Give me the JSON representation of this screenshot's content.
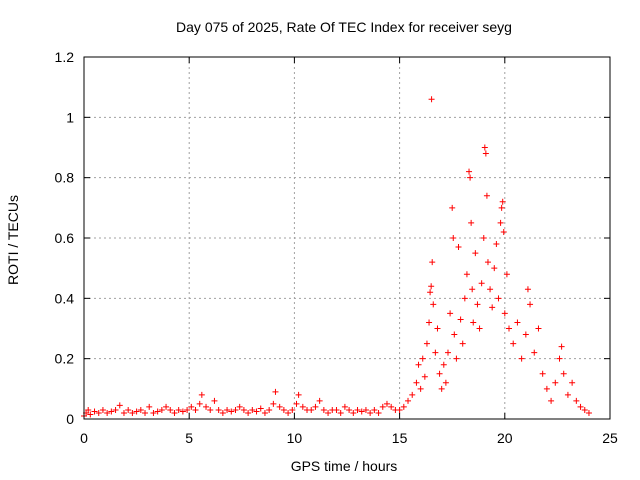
{
  "chart_data": {
    "type": "scatter",
    "title": "Day 075 of 2025, Rate Of TEC Index for receiver seyg",
    "xlabel": "GPS time / hours",
    "ylabel": "ROTI / TECUs",
    "xlim": [
      0,
      25
    ],
    "ylim": [
      0,
      1.2
    ],
    "xticks": [
      0,
      5,
      10,
      15,
      20,
      25
    ],
    "yticks": [
      0,
      0.2,
      0.4,
      0.6,
      0.8,
      1,
      1.2
    ],
    "xtick_labels": [
      "0",
      "5",
      "10",
      "15",
      "20",
      "25"
    ],
    "ytick_labels": [
      "0",
      "0.2",
      "0.4",
      "0.6",
      "0.8",
      "1",
      "1.2"
    ],
    "grid": true,
    "marker": "+",
    "color": "#ff0000",
    "series": [
      {
        "name": "ROTI",
        "points": [
          [
            0.0,
            0.01
          ],
          [
            0.1,
            0.02
          ],
          [
            0.2,
            0.03
          ],
          [
            0.3,
            0.015
          ],
          [
            0.5,
            0.025
          ],
          [
            0.7,
            0.02
          ],
          [
            0.9,
            0.03
          ],
          [
            1.1,
            0.02
          ],
          [
            1.3,
            0.025
          ],
          [
            1.5,
            0.03
          ],
          [
            1.7,
            0.045
          ],
          [
            1.9,
            0.02
          ],
          [
            2.1,
            0.03
          ],
          [
            2.3,
            0.02
          ],
          [
            2.5,
            0.025
          ],
          [
            2.7,
            0.03
          ],
          [
            2.9,
            0.02
          ],
          [
            3.1,
            0.04
          ],
          [
            3.3,
            0.02
          ],
          [
            3.5,
            0.025
          ],
          [
            3.7,
            0.03
          ],
          [
            3.9,
            0.04
          ],
          [
            4.1,
            0.03
          ],
          [
            4.3,
            0.02
          ],
          [
            4.5,
            0.03
          ],
          [
            4.7,
            0.025
          ],
          [
            4.9,
            0.03
          ],
          [
            5.1,
            0.04
          ],
          [
            5.3,
            0.03
          ],
          [
            5.5,
            0.05
          ],
          [
            5.6,
            0.08
          ],
          [
            5.8,
            0.04
          ],
          [
            6.0,
            0.03
          ],
          [
            6.2,
            0.06
          ],
          [
            6.4,
            0.03
          ],
          [
            6.6,
            0.02
          ],
          [
            6.8,
            0.03
          ],
          [
            7.0,
            0.025
          ],
          [
            7.2,
            0.03
          ],
          [
            7.4,
            0.04
          ],
          [
            7.6,
            0.03
          ],
          [
            7.8,
            0.02
          ],
          [
            8.0,
            0.03
          ],
          [
            8.2,
            0.025
          ],
          [
            8.4,
            0.035
          ],
          [
            8.6,
            0.02
          ],
          [
            8.8,
            0.03
          ],
          [
            9.0,
            0.05
          ],
          [
            9.1,
            0.09
          ],
          [
            9.3,
            0.04
          ],
          [
            9.5,
            0.03
          ],
          [
            9.7,
            0.02
          ],
          [
            9.9,
            0.03
          ],
          [
            10.1,
            0.05
          ],
          [
            10.2,
            0.08
          ],
          [
            10.4,
            0.04
          ],
          [
            10.6,
            0.03
          ],
          [
            10.8,
            0.03
          ],
          [
            11.0,
            0.04
          ],
          [
            11.2,
            0.06
          ],
          [
            11.4,
            0.03
          ],
          [
            11.6,
            0.02
          ],
          [
            11.8,
            0.03
          ],
          [
            12.0,
            0.03
          ],
          [
            12.2,
            0.02
          ],
          [
            12.4,
            0.04
          ],
          [
            12.6,
            0.03
          ],
          [
            12.8,
            0.02
          ],
          [
            13.0,
            0.03
          ],
          [
            13.2,
            0.025
          ],
          [
            13.4,
            0.03
          ],
          [
            13.6,
            0.02
          ],
          [
            13.8,
            0.03
          ],
          [
            14.0,
            0.02
          ],
          [
            14.2,
            0.04
          ],
          [
            14.4,
            0.05
          ],
          [
            14.6,
            0.04
          ],
          [
            14.8,
            0.03
          ],
          [
            15.0,
            0.03
          ],
          [
            15.2,
            0.04
          ],
          [
            15.4,
            0.06
          ],
          [
            15.6,
            0.08
          ],
          [
            15.8,
            0.12
          ],
          [
            15.9,
            0.18
          ],
          [
            16.0,
            0.1
          ],
          [
            16.1,
            0.2
          ],
          [
            16.2,
            0.14
          ],
          [
            16.3,
            0.25
          ],
          [
            16.4,
            0.32
          ],
          [
            16.45,
            0.42
          ],
          [
            16.5,
            0.44
          ],
          [
            16.52,
            1.06
          ],
          [
            16.55,
            0.52
          ],
          [
            16.6,
            0.38
          ],
          [
            16.7,
            0.22
          ],
          [
            16.8,
            0.3
          ],
          [
            16.9,
            0.15
          ],
          [
            17.0,
            0.1
          ],
          [
            17.1,
            0.18
          ],
          [
            17.2,
            0.12
          ],
          [
            17.3,
            0.22
          ],
          [
            17.4,
            0.35
          ],
          [
            17.5,
            0.7
          ],
          [
            17.55,
            0.6
          ],
          [
            17.6,
            0.28
          ],
          [
            17.7,
            0.2
          ],
          [
            17.8,
            0.57
          ],
          [
            17.9,
            0.33
          ],
          [
            18.0,
            0.25
          ],
          [
            18.1,
            0.4
          ],
          [
            18.2,
            0.48
          ],
          [
            18.3,
            0.82
          ],
          [
            18.35,
            0.8
          ],
          [
            18.4,
            0.65
          ],
          [
            18.45,
            0.43
          ],
          [
            18.5,
            0.32
          ],
          [
            18.6,
            0.55
          ],
          [
            18.7,
            0.38
          ],
          [
            18.8,
            0.3
          ],
          [
            18.9,
            0.45
          ],
          [
            19.0,
            0.6
          ],
          [
            19.05,
            0.9
          ],
          [
            19.1,
            0.88
          ],
          [
            19.15,
            0.74
          ],
          [
            19.2,
            0.52
          ],
          [
            19.3,
            0.43
          ],
          [
            19.4,
            0.37
          ],
          [
            19.5,
            0.5
          ],
          [
            19.6,
            0.58
          ],
          [
            19.7,
            0.4
          ],
          [
            19.8,
            0.65
          ],
          [
            19.85,
            0.7
          ],
          [
            19.9,
            0.72
          ],
          [
            19.95,
            0.62
          ],
          [
            20.0,
            0.35
          ],
          [
            20.1,
            0.48
          ],
          [
            20.2,
            0.3
          ],
          [
            20.4,
            0.25
          ],
          [
            20.6,
            0.32
          ],
          [
            20.8,
            0.2
          ],
          [
            21.0,
            0.28
          ],
          [
            21.1,
            0.43
          ],
          [
            21.2,
            0.38
          ],
          [
            21.4,
            0.22
          ],
          [
            21.6,
            0.3
          ],
          [
            21.8,
            0.15
          ],
          [
            22.0,
            0.1
          ],
          [
            22.2,
            0.06
          ],
          [
            22.4,
            0.12
          ],
          [
            22.6,
            0.2
          ],
          [
            22.7,
            0.24
          ],
          [
            22.8,
            0.15
          ],
          [
            23.0,
            0.08
          ],
          [
            23.2,
            0.12
          ],
          [
            23.4,
            0.06
          ],
          [
            23.6,
            0.04
          ],
          [
            23.8,
            0.03
          ],
          [
            24.0,
            0.02
          ]
        ]
      }
    ]
  }
}
